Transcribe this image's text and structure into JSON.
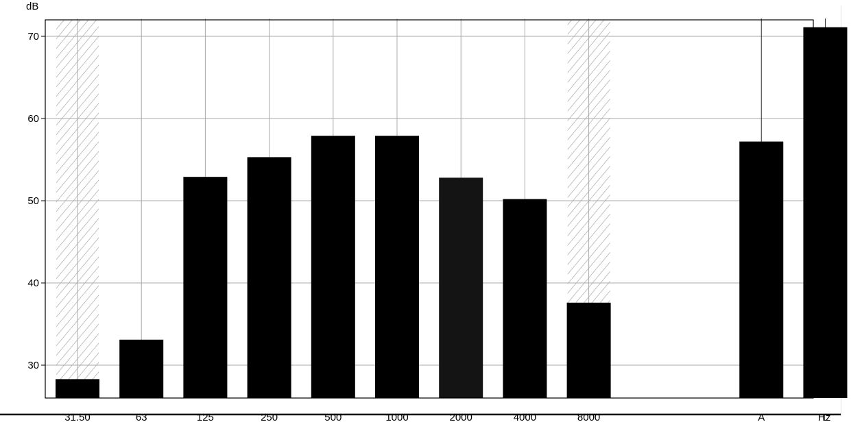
{
  "chart_data": {
    "type": "bar",
    "ylabel": "dB",
    "xunit": "Hz",
    "ylim": [
      26,
      72
    ],
    "yticks": [
      30,
      40,
      50,
      60,
      70
    ],
    "grid": true,
    "categories": [
      "31.50",
      "63",
      "125",
      "250",
      "500",
      "1000",
      "2000",
      "4000",
      "8000",
      "A",
      "L"
    ],
    "gap_after_index": 8,
    "values": [
      28.3,
      33.1,
      52.9,
      55.3,
      57.9,
      57.9,
      52.8,
      50.2,
      37.6,
      57.2,
      71.1
    ],
    "hatched_categories": [
      "31.50",
      "8000"
    ]
  },
  "colors": {
    "bar": "#000000",
    "bar_alt": "#141414",
    "grid": "#a8a8a8",
    "hatch": "#9a9a9a"
  }
}
